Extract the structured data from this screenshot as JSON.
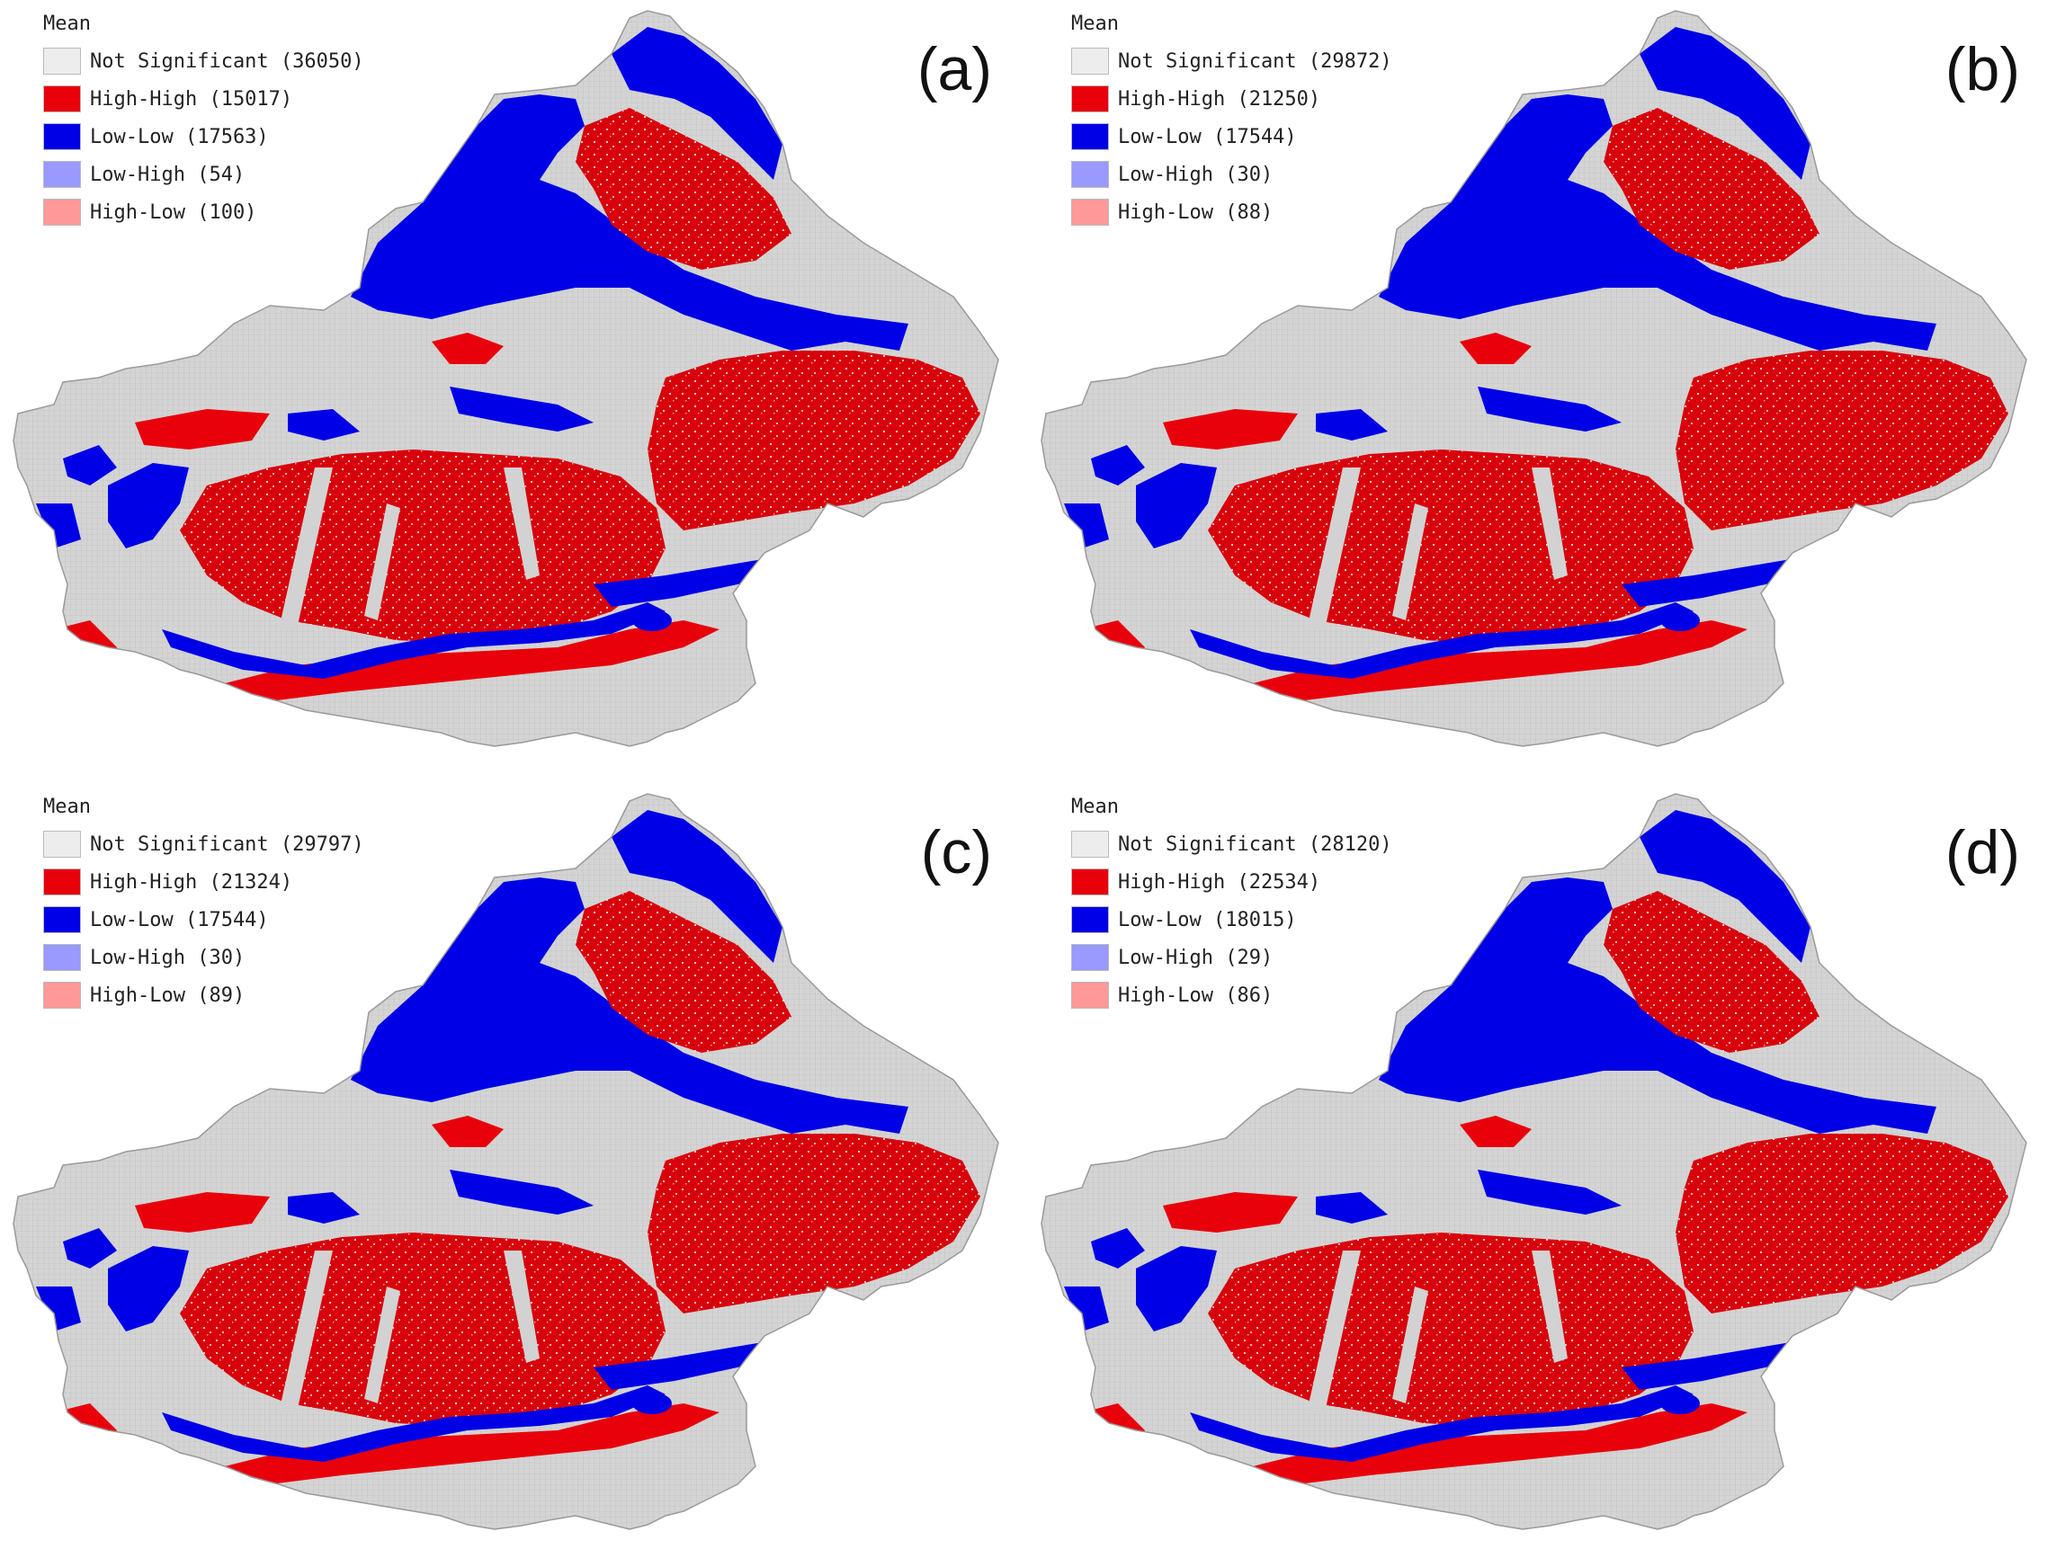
{
  "figure": {
    "colors": {
      "not_significant": "#ededed",
      "high_high": "#e8000b",
      "low_low": "#0000e6",
      "low_high": "#9999ff",
      "high_low": "#ff9999",
      "region_base": "#d2d2d2"
    },
    "panels": [
      {
        "label": "(a)",
        "legend_title": "Mean",
        "legend": [
          {
            "text": "Not Significant (36050)",
            "color": "#ededed"
          },
          {
            "text": "High-High (15017)",
            "color": "#e8000b"
          },
          {
            "text": "Low-Low (17563)",
            "color": "#0000e6"
          },
          {
            "text": "Low-High (54)",
            "color": "#9999ff"
          },
          {
            "text": "High-Low (100)",
            "color": "#ff9999"
          }
        ]
      },
      {
        "label": "(b)",
        "legend_title": "Mean",
        "legend": [
          {
            "text": "Not Significant (29872)",
            "color": "#ededed"
          },
          {
            "text": "High-High (21250)",
            "color": "#e8000b"
          },
          {
            "text": "Low-Low (17544)",
            "color": "#0000e6"
          },
          {
            "text": "Low-High (30)",
            "color": "#9999ff"
          },
          {
            "text": "High-Low (88)",
            "color": "#ff9999"
          }
        ]
      },
      {
        "label": "(c)",
        "legend_title": "Mean",
        "legend": [
          {
            "text": "Not Significant (29797)",
            "color": "#ededed"
          },
          {
            "text": "High-High (21324)",
            "color": "#e8000b"
          },
          {
            "text": "Low-Low (17544)",
            "color": "#0000e6"
          },
          {
            "text": "Low-High (30)",
            "color": "#9999ff"
          },
          {
            "text": "High-Low (89)",
            "color": "#ff9999"
          }
        ]
      },
      {
        "label": "(d)",
        "legend_title": "Mean",
        "legend": [
          {
            "text": "Not Significant (28120)",
            "color": "#ededed"
          },
          {
            "text": "High-High (22534)",
            "color": "#e8000b"
          },
          {
            "text": "Low-Low (18015)",
            "color": "#0000e6"
          },
          {
            "text": "Low-High (29)",
            "color": "#9999ff"
          },
          {
            "text": "High-Low (86)",
            "color": "#ff9999"
          }
        ]
      }
    ]
  }
}
